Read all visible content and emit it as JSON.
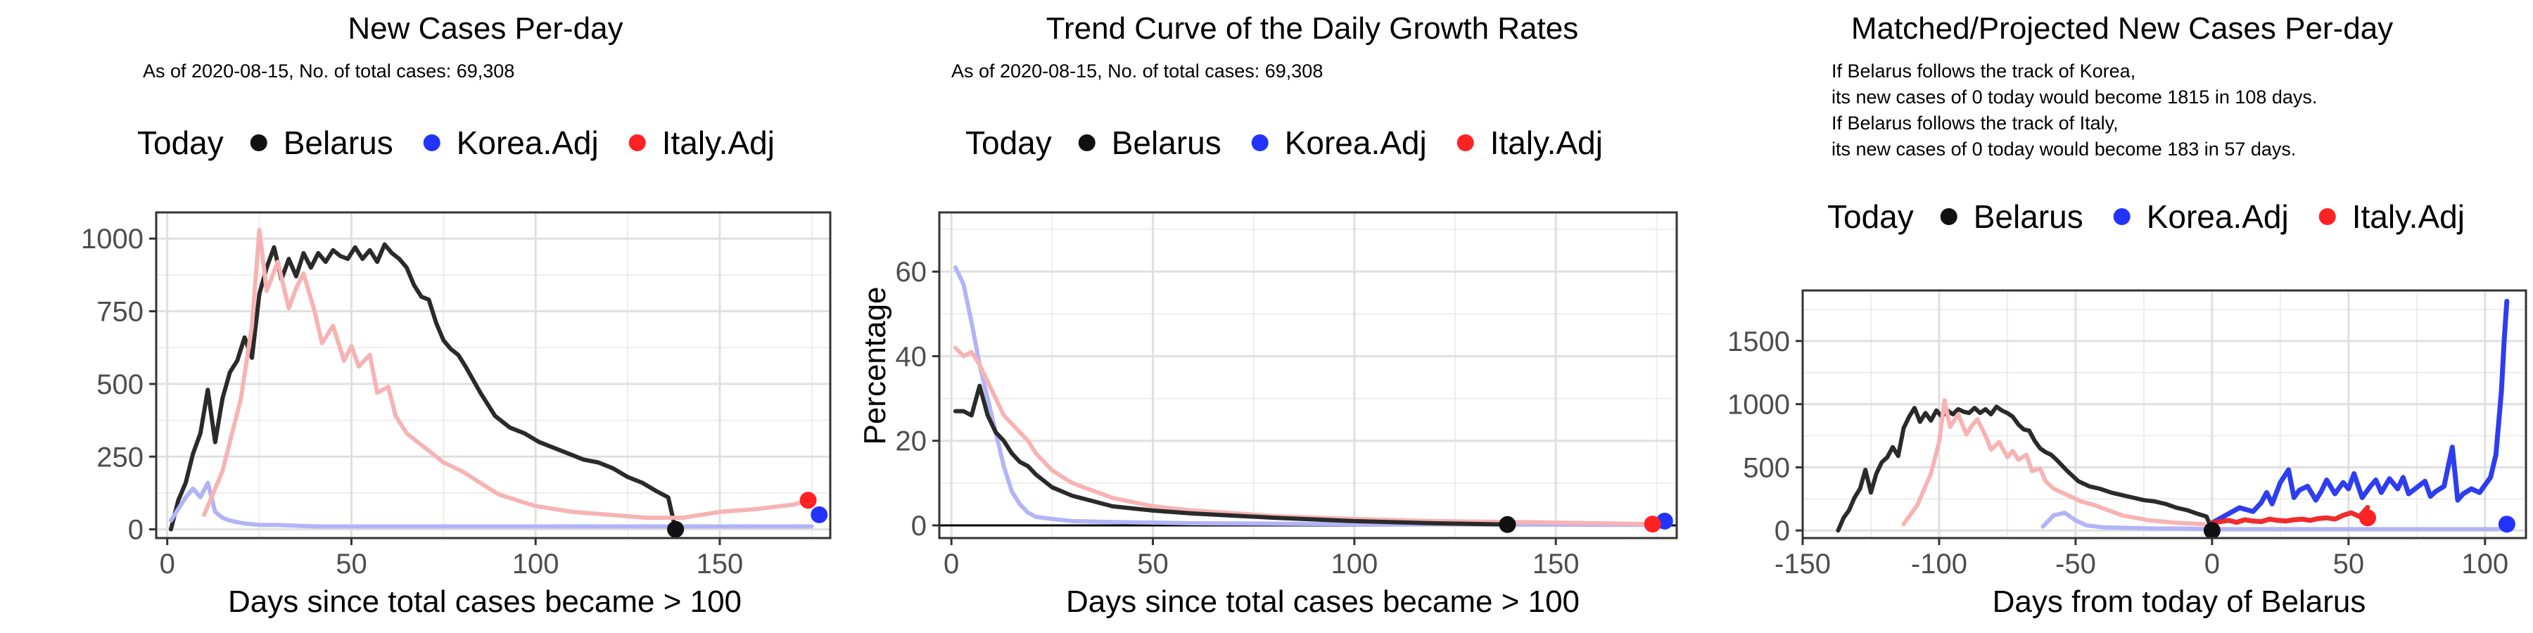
{
  "chart_data": [
    {
      "type": "line",
      "title": "New Cases Per-day",
      "subtitle": "As of 2020-08-15, No. of total cases: 69,308",
      "xlabel": "Days since total cases became > 100",
      "ylabel": "",
      "xlim": [
        -3,
        180
      ],
      "ylim": [
        -30,
        1090
      ],
      "xticks": [
        "0",
        "50",
        "100",
        "150"
      ],
      "yticks": [
        "0",
        "250",
        "500",
        "750",
        "1000"
      ],
      "legend": {
        "title": "Today",
        "position": "top",
        "items": [
          "Belarus",
          "Korea.Adj",
          "Italy.Adj"
        ]
      },
      "colors": {
        "Belarus": "#222222",
        "Korea.Adj": "#2233ff",
        "Italy.Adj": "#ff2222",
        "Korea.line": "#b3b3f7",
        "Italy.line": "#f7b3b3"
      },
      "series": [
        {
          "name": "Belarus",
          "x": [
            1,
            3,
            5,
            7,
            9,
            11,
            13,
            15,
            17,
            19,
            21,
            23,
            25,
            27,
            29,
            31,
            33,
            35,
            37,
            39,
            41,
            43,
            45,
            47,
            49,
            51,
            53,
            55,
            57,
            59,
            61,
            63,
            65,
            67,
            69,
            71,
            73,
            75,
            77,
            79,
            81,
            85,
            89,
            93,
            97,
            101,
            105,
            109,
            113,
            117,
            121,
            125,
            129,
            133,
            136,
            138
          ],
          "y": [
            0,
            100,
            160,
            260,
            330,
            480,
            300,
            450,
            540,
            580,
            660,
            590,
            810,
            900,
            970,
            860,
            930,
            870,
            950,
            900,
            950,
            920,
            960,
            940,
            930,
            970,
            930,
            960,
            920,
            980,
            950,
            930,
            900,
            840,
            800,
            790,
            710,
            650,
            620,
            600,
            560,
            470,
            390,
            350,
            330,
            300,
            280,
            260,
            240,
            230,
            210,
            180,
            160,
            130,
            110,
            0
          ]
        },
        {
          "name": "Korea.Adj",
          "x": [
            1,
            3,
            5,
            7,
            9,
            11,
            13,
            15,
            17,
            19,
            21,
            25,
            30,
            40,
            50,
            60,
            80,
            100,
            120,
            140,
            160,
            175
          ],
          "y": [
            30,
            70,
            110,
            140,
            110,
            160,
            60,
            40,
            30,
            25,
            20,
            15,
            15,
            10,
            10,
            10,
            10,
            10,
            10,
            10,
            10,
            10
          ]
        },
        {
          "name": "Italy.Adj",
          "x": [
            10,
            15,
            20,
            23,
            25,
            27,
            30,
            33,
            35,
            37,
            40,
            42,
            45,
            48,
            50,
            52,
            55,
            57,
            60,
            62,
            65,
            70,
            75,
            80,
            85,
            90,
            95,
            100,
            110,
            120,
            130,
            140,
            150,
            160,
            170,
            174
          ],
          "y": [
            50,
            200,
            450,
            700,
            1030,
            820,
            920,
            760,
            830,
            880,
            750,
            640,
            700,
            580,
            630,
            560,
            600,
            470,
            490,
            390,
            330,
            280,
            230,
            200,
            160,
            120,
            100,
            80,
            60,
            50,
            40,
            40,
            60,
            70,
            85,
            100
          ]
        }
      ],
      "today_points": [
        {
          "name": "Belarus",
          "x": 138,
          "y": 0
        },
        {
          "name": "Korea.Adj",
          "x": 177,
          "y": 50
        },
        {
          "name": "Italy.Adj",
          "x": 174,
          "y": 100
        }
      ]
    },
    {
      "type": "line",
      "title": "Trend Curve of the Daily Growth Rates",
      "subtitle": "As of 2020-08-15, No. of total cases: 69,308",
      "xlabel": "Days since total cases became > 100",
      "ylabel": "Percentage",
      "xlim": [
        -3,
        180
      ],
      "ylim": [
        -3,
        74
      ],
      "xticks": [
        "0",
        "50",
        "100",
        "150"
      ],
      "yticks": [
        "0",
        "20",
        "40",
        "60"
      ],
      "legend": {
        "title": "Today",
        "position": "top",
        "items": [
          "Belarus",
          "Korea.Adj",
          "Italy.Adj"
        ]
      },
      "series": [
        {
          "name": "Korea.Adj",
          "x": [
            1,
            3,
            5,
            7,
            9,
            11,
            13,
            15,
            17,
            19,
            21,
            25,
            30,
            40,
            60,
            100,
            140,
            177
          ],
          "y": [
            61,
            57,
            48,
            38,
            30,
            22,
            14,
            8,
            5,
            3,
            2,
            1.5,
            1,
            0.8,
            0.5,
            0.3,
            0.2,
            0.1
          ]
        },
        {
          "name": "Italy.Adj",
          "x": [
            1,
            3,
            5,
            7,
            9,
            11,
            13,
            15,
            17,
            19,
            21,
            25,
            30,
            40,
            50,
            60,
            80,
            100,
            120,
            140,
            160,
            174
          ],
          "y": [
            42,
            40,
            41,
            38,
            34,
            30,
            26,
            24,
            22,
            20,
            17,
            13,
            10,
            6.5,
            4.5,
            3.5,
            2.2,
            1.5,
            1,
            0.8,
            0.5,
            0.3
          ]
        },
        {
          "name": "Belarus",
          "x": [
            1,
            3,
            5,
            7,
            9,
            11,
            13,
            15,
            17,
            19,
            21,
            25,
            30,
            40,
            50,
            60,
            80,
            100,
            120,
            138
          ],
          "y": [
            27,
            27,
            26,
            33,
            26,
            22,
            20,
            17,
            15,
            14,
            12,
            9,
            7,
            4.5,
            3.5,
            2.8,
            1.8,
            1,
            0.5,
            0.2
          ]
        }
      ],
      "today_points": [
        {
          "name": "Belarus",
          "x": 138,
          "y": 0.2
        },
        {
          "name": "Korea.Adj",
          "x": 177,
          "y": 1
        },
        {
          "name": "Italy.Adj",
          "x": 174,
          "y": 0.3
        }
      ],
      "hline": 0
    },
    {
      "type": "line",
      "title": "Matched/Projected New Cases Per-day",
      "subtitle_lines": [
        "If Belarus follows the track of Korea,",
        "its new cases of 0 today would become 1815 in 108 days.",
        "If Belarus follows the track of Italy,",
        "its new cases of 0 today would become 183 in 57 days."
      ],
      "xlabel": "Days from today of Belarus",
      "ylabel": "",
      "xlim": [
        -150,
        115
      ],
      "ylim": [
        -60,
        1900
      ],
      "xticks": [
        "-150",
        "-100",
        "-50",
        "0",
        "50",
        "100"
      ],
      "yticks": [
        "0",
        "500",
        "1000",
        "1500"
      ],
      "legend": {
        "title": "Today",
        "position": "top",
        "items": [
          "Belarus",
          "Korea.Adj",
          "Italy.Adj"
        ]
      },
      "series": [
        {
          "name": "Belarus",
          "x": [
            -137,
            -135,
            -133,
            -131,
            -129,
            -127,
            -125,
            -123,
            -121,
            -119,
            -117,
            -115,
            -113,
            -111,
            -109,
            -107,
            -105,
            -103,
            -101,
            -99,
            -97,
            -95,
            -93,
            -91,
            -89,
            -87,
            -85,
            -83,
            -81,
            -79,
            -77,
            -75,
            -73,
            -71,
            -69,
            -67,
            -65,
            -63,
            -61,
            -59,
            -57,
            -53,
            -49,
            -45,
            -41,
            -37,
            -33,
            -29,
            -25,
            -21,
            -17,
            -13,
            -9,
            -5,
            -2,
            0
          ],
          "y": [
            0,
            100,
            160,
            260,
            330,
            480,
            300,
            450,
            540,
            580,
            660,
            590,
            810,
            900,
            970,
            860,
            930,
            870,
            950,
            900,
            950,
            920,
            960,
            940,
            930,
            970,
            930,
            960,
            920,
            980,
            950,
            930,
            900,
            840,
            800,
            790,
            710,
            650,
            620,
            600,
            560,
            470,
            390,
            350,
            330,
            300,
            280,
            260,
            240,
            230,
            210,
            180,
            160,
            130,
            110,
            0
          ]
        },
        {
          "name": "Korea.Adj.past",
          "x": [
            -62,
            -58,
            -54,
            -50,
            -46,
            -40,
            -30,
            -20,
            -10,
            0,
            20,
            40,
            60,
            80,
            100,
            105
          ],
          "y": [
            30,
            120,
            140,
            80,
            40,
            25,
            20,
            15,
            15,
            10,
            10,
            10,
            10,
            10,
            10,
            10
          ]
        },
        {
          "name": "Italy.Adj.past",
          "x": [
            -113,
            -108,
            -103,
            -100,
            -98,
            -96,
            -93,
            -90,
            -88,
            -86,
            -83,
            -81,
            -78,
            -75,
            -73,
            -71,
            -68,
            -66,
            -63,
            -61,
            -58,
            -53,
            -48,
            -43,
            -38,
            -33,
            -28,
            -23,
            -13,
            -3
          ],
          "y": [
            50,
            200,
            450,
            700,
            1030,
            820,
            920,
            760,
            830,
            880,
            750,
            640,
            700,
            580,
            630,
            560,
            600,
            470,
            490,
            390,
            330,
            280,
            230,
            200,
            160,
            120,
            100,
            80,
            60,
            50
          ]
        },
        {
          "name": "Korea.Adj",
          "x": [
            0,
            5,
            10,
            15,
            18,
            20,
            22,
            25,
            28,
            30,
            32,
            35,
            38,
            40,
            42,
            45,
            48,
            50,
            52,
            55,
            58,
            60,
            62,
            65,
            68,
            70,
            72,
            75,
            78,
            80,
            82,
            85,
            88,
            90,
            92,
            95,
            98,
            100,
            102,
            104,
            106,
            107,
            108
          ],
          "y": [
            60,
            120,
            180,
            150,
            220,
            300,
            210,
            380,
            480,
            260,
            320,
            350,
            240,
            310,
            400,
            290,
            380,
            330,
            450,
            260,
            350,
            400,
            300,
            410,
            330,
            420,
            290,
            340,
            390,
            270,
            310,
            350,
            660,
            240,
            290,
            330,
            300,
            360,
            420,
            600,
            1100,
            1500,
            1815
          ]
        },
        {
          "name": "Italy.Adj",
          "x": [
            0,
            3,
            6,
            9,
            12,
            15,
            18,
            21,
            24,
            27,
            30,
            33,
            36,
            39,
            42,
            45,
            48,
            51,
            54,
            57
          ],
          "y": [
            60,
            70,
            80,
            65,
            85,
            75,
            70,
            90,
            80,
            75,
            85,
            90,
            80,
            95,
            100,
            90,
            120,
            140,
            110,
            183
          ]
        }
      ],
      "today_points": [
        {
          "name": "Belarus",
          "x": 0,
          "y": 0
        },
        {
          "name": "Korea.Adj",
          "x": 108,
          "y": 50
        },
        {
          "name": "Italy.Adj",
          "x": 57,
          "y": 100
        }
      ]
    }
  ]
}
